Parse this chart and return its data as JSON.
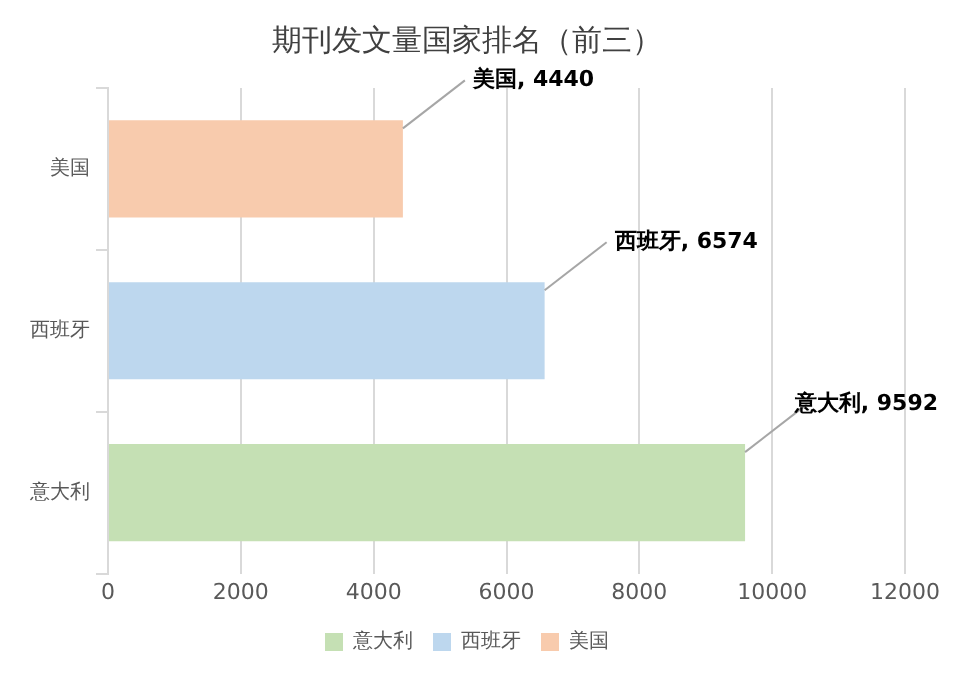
{
  "chart_data": {
    "type": "bar",
    "orientation": "horizontal",
    "title": "期刊发文量国家排名（前三）",
    "categories": [
      "美国",
      "西班牙",
      "意大利"
    ],
    "series": [
      {
        "name": "意大利",
        "color": "#c5e0b4",
        "values": [
          null,
          null,
          9592
        ],
        "value_labels": [
          null,
          null,
          "意大利, 9592"
        ]
      },
      {
        "name": "西班牙",
        "color": "#bdd7ee",
        "values": [
          null,
          6574,
          null
        ],
        "value_labels": [
          null,
          "西班牙, 6574",
          null
        ]
      },
      {
        "name": "美国",
        "color": "#f8cbad",
        "values": [
          4440,
          null,
          null
        ],
        "value_labels": [
          "美国, 4440",
          null,
          null
        ]
      }
    ],
    "xlim": [
      0,
      12000
    ],
    "xticks": [
      0,
      2000,
      4000,
      6000,
      8000,
      10000,
      12000
    ],
    "grid": "x",
    "legend": "bottom"
  }
}
